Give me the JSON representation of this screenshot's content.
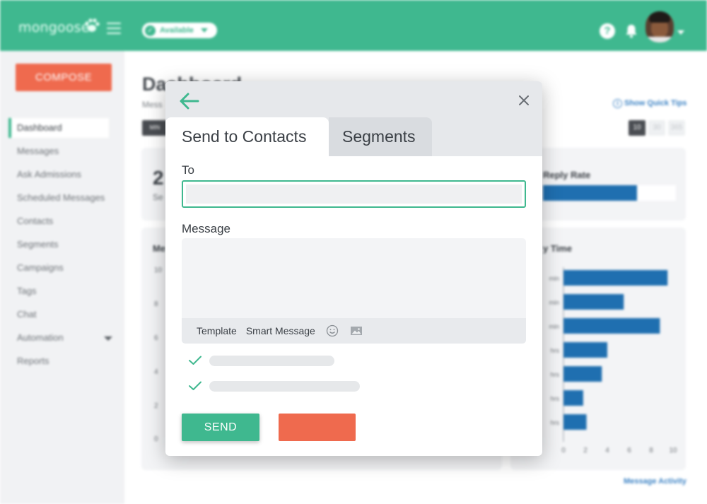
{
  "app": {
    "logo_text": "mongoose",
    "status_label": "Available",
    "status_check": "✓",
    "help_glyph": "?"
  },
  "sidebar": {
    "compose_label": "COMPOSE",
    "items": [
      {
        "label": "Dashboard"
      },
      {
        "label": "Messages"
      },
      {
        "label": "Ask Admissions"
      },
      {
        "label": "Scheduled Messages"
      },
      {
        "label": "Contacts"
      },
      {
        "label": "Segments"
      },
      {
        "label": "Campaigns"
      },
      {
        "label": "Tags"
      },
      {
        "label": "Chat"
      },
      {
        "label": "Automation"
      },
      {
        "label": "Reports"
      }
    ]
  },
  "dashboard": {
    "title": "Dashboard",
    "subtitle": "Mess",
    "chip_label": "MIN",
    "quick_tips": "Show Quick Tips",
    "range_buttons": [
      "10",
      "30",
      "365"
    ],
    "stat_value": "2",
    "stat_label": "Se",
    "reply_rate_title": "Reply Rate",
    "reply_rate_fraction": 0.71,
    "left_chart_title": "Me",
    "left_chart_ticks": [
      "10",
      "8",
      "6",
      "4",
      "2",
      "0"
    ],
    "response_time_title": "y Time",
    "message_activity_link": "Message Activity",
    "accent_color": "#3fb88f",
    "bar_color": "#1f6fb0"
  },
  "chart_data": {
    "type": "bar",
    "orientation": "horizontal",
    "categories": [
      "min",
      "min",
      "min",
      "hrs",
      "hrs",
      "hrs",
      "hrs"
    ],
    "values": [
      9.5,
      5.5,
      8.8,
      4,
      3.5,
      1.8,
      2.1
    ],
    "x_ticks": [
      "0",
      "2",
      "4",
      "6",
      "8",
      "10"
    ],
    "xlim": [
      0,
      10
    ]
  },
  "modal": {
    "tabs": [
      {
        "label": "Send to Contacts",
        "active": true
      },
      {
        "label": "Segments",
        "active": false
      }
    ],
    "to_label": "To",
    "to_value": "",
    "message_label": "Message",
    "message_value": "",
    "toolbar": {
      "template_label": "Template",
      "smart_message_label": "Smart Message"
    },
    "options": [
      {
        "checked": true
      },
      {
        "checked": true
      }
    ],
    "send_label": "SEND",
    "cancel_label": ""
  }
}
